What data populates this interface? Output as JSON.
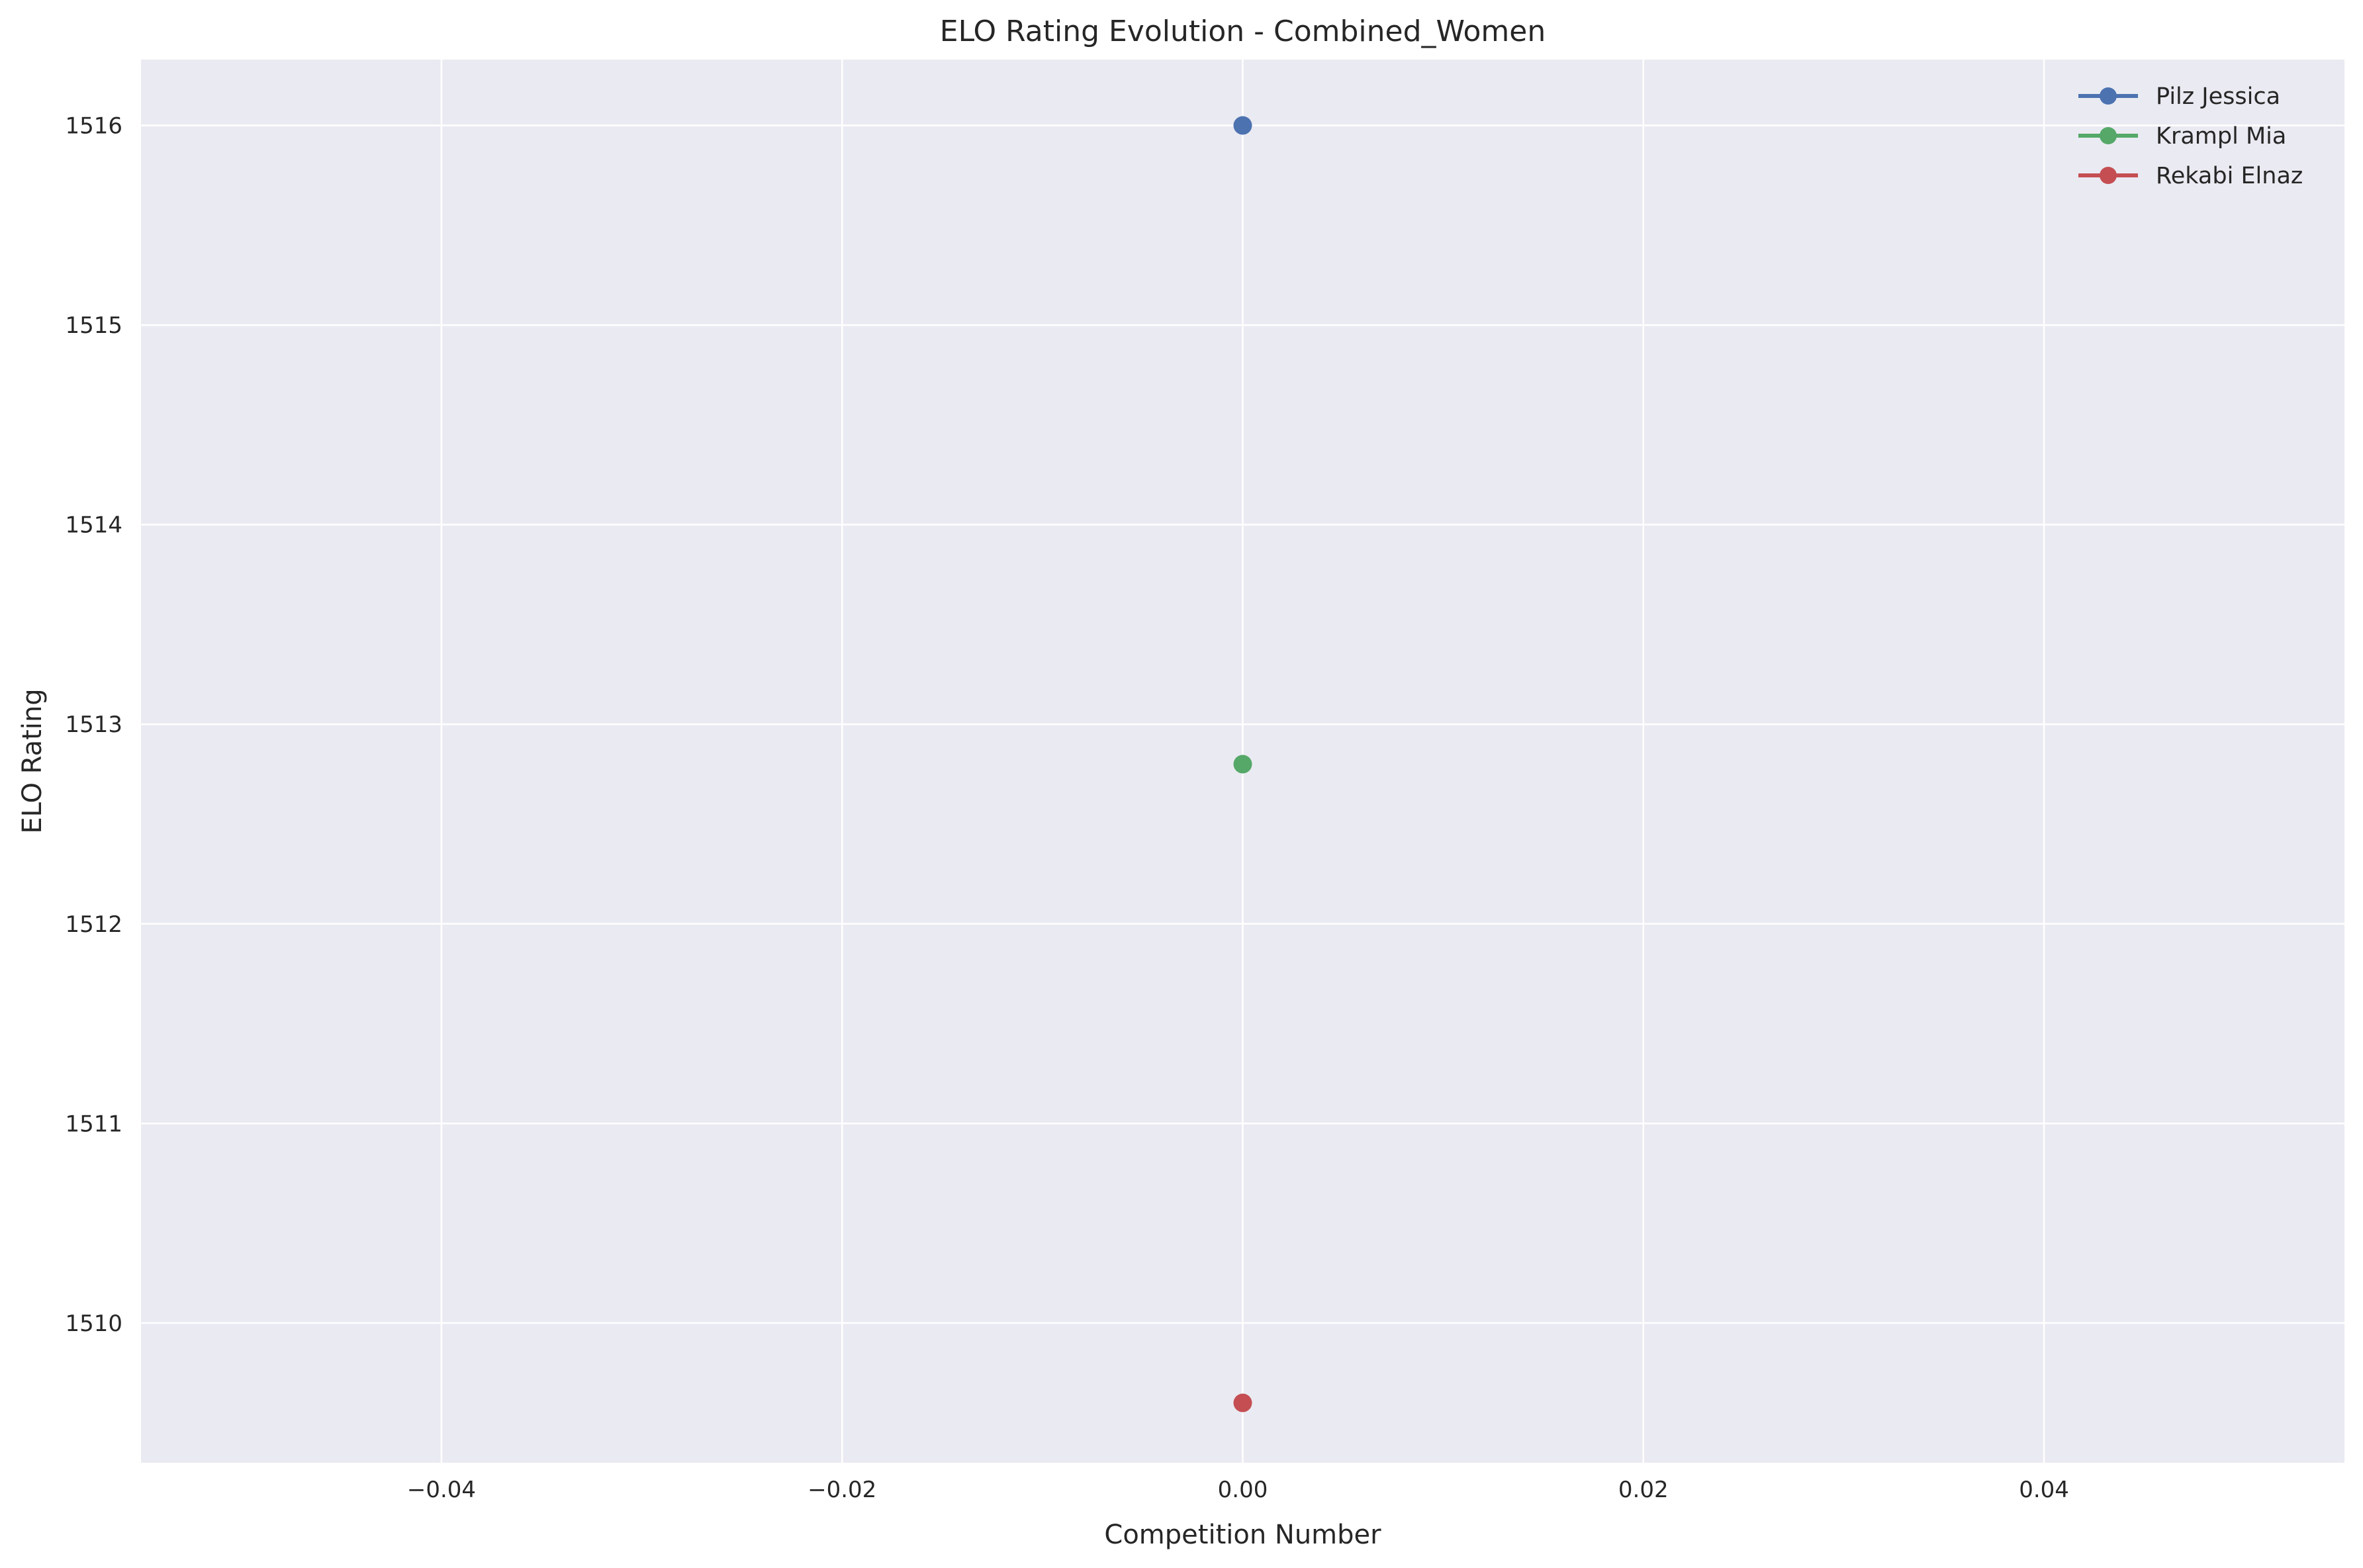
{
  "chart_data": {
    "type": "line",
    "title": "ELO Rating Evolution - Combined_Women",
    "xlabel": "Competition Number",
    "ylabel": "ELO Rating",
    "xlim": [
      -0.055,
      0.055
    ],
    "ylim": [
      1509.3,
      1516.33
    ],
    "xticks": [
      -0.04,
      -0.02,
      0.0,
      0.02,
      0.04
    ],
    "xtick_labels": [
      "−0.04",
      "−0.02",
      "0.00",
      "0.02",
      "0.04"
    ],
    "yticks": [
      1510,
      1511,
      1512,
      1513,
      1514,
      1515,
      1516
    ],
    "ytick_labels": [
      "1510",
      "1511",
      "1512",
      "1513",
      "1514",
      "1515",
      "1516"
    ],
    "grid": true,
    "legend_position": "top-right",
    "background": "#eaeaf2",
    "series": [
      {
        "name": "Pilz Jessica",
        "color": "#4c72b0",
        "x": [
          0
        ],
        "y": [
          1516.0
        ]
      },
      {
        "name": "Krampl Mia",
        "color": "#55a868",
        "x": [
          0
        ],
        "y": [
          1512.8
        ]
      },
      {
        "name": "Rekabi Elnaz",
        "color": "#c44e52",
        "x": [
          0
        ],
        "y": [
          1509.6
        ]
      }
    ]
  }
}
